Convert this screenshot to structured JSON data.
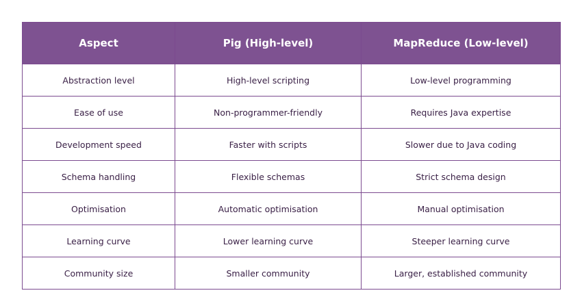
{
  "table": {
    "header": [
      "Aspect",
      "Pig (High-level)",
      "MapReduce (Low-level)"
    ],
    "rows": [
      [
        "Abstraction level",
        "High-level scripting",
        "Low-level programming"
      ],
      [
        "Ease of use",
        "Non-programmer-friendly",
        "Requires Java expertise"
      ],
      [
        "Development speed",
        "Faster with scripts",
        "Slower due to Java coding"
      ],
      [
        "Schema handling",
        "Flexible schemas",
        "Strict schema design"
      ],
      [
        "Optimisation",
        "Automatic optimisation",
        "Manual optimisation"
      ],
      [
        "Learning curve",
        "Lower learning curve",
        "Steeper learning curve"
      ],
      [
        "Community size",
        "Smaller community",
        "Larger, established community"
      ]
    ]
  }
}
